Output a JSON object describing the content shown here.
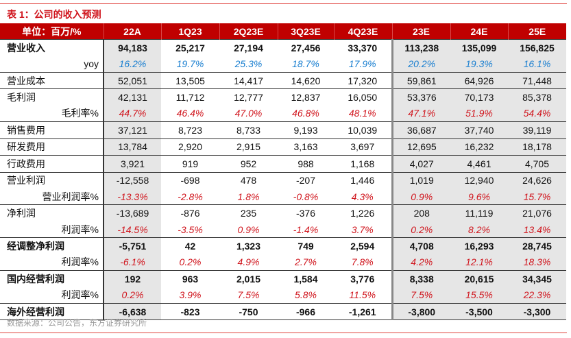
{
  "title": "表 1：公司的收入预测",
  "header": [
    "单位：百万/%",
    "22A",
    "1Q23",
    "2Q23E",
    "3Q23E",
    "4Q23E",
    "23E",
    "24E",
    "25E"
  ],
  "rows": [
    {
      "label": "营业收入",
      "style": "bold",
      "group": true,
      "values": [
        "94,183",
        "25,217",
        "27,194",
        "27,456",
        "33,370",
        "113,238",
        "135,099",
        "156,825"
      ]
    },
    {
      "label": "yoy",
      "style": "blue",
      "sub": true,
      "values": [
        "16.2%",
        "19.7%",
        "25.3%",
        "18.7%",
        "17.9%",
        "20.2%",
        "19.3%",
        "16.1%"
      ]
    },
    {
      "label": "营业成本",
      "group": true,
      "values": [
        "52,051",
        "13,505",
        "14,417",
        "14,620",
        "17,320",
        "59,861",
        "64,926",
        "71,448"
      ]
    },
    {
      "label": "毛利润",
      "group": true,
      "values": [
        "42,131",
        "11,712",
        "12,777",
        "12,837",
        "16,050",
        "53,376",
        "70,173",
        "85,378"
      ]
    },
    {
      "label": "毛利率%",
      "style": "red",
      "sub": true,
      "values": [
        "44.7%",
        "46.4%",
        "47.0%",
        "46.8%",
        "48.1%",
        "47.1%",
        "51.9%",
        "54.4%"
      ]
    },
    {
      "label": "销售费用",
      "group": true,
      "values": [
        "37,121",
        "8,723",
        "8,733",
        "9,193",
        "10,039",
        "36,687",
        "37,740",
        "39,119"
      ]
    },
    {
      "label": "研发费用",
      "group": true,
      "values": [
        "13,784",
        "2,920",
        "2,915",
        "3,163",
        "3,697",
        "12,695",
        "16,232",
        "18,178"
      ]
    },
    {
      "label": "行政费用",
      "group": true,
      "values": [
        "3,921",
        "919",
        "952",
        "988",
        "1,168",
        "4,027",
        "4,461",
        "4,705"
      ]
    },
    {
      "label": "营业利润",
      "group": true,
      "values": [
        "-12,558",
        "-698",
        "478",
        "-207",
        "1,446",
        "1,019",
        "12,940",
        "24,626"
      ]
    },
    {
      "label": "营业利润率%",
      "style": "red",
      "sub": true,
      "values": [
        "-13.3%",
        "-2.8%",
        "1.8%",
        "-0.8%",
        "4.3%",
        "0.9%",
        "9.6%",
        "15.7%"
      ]
    },
    {
      "label": "净利润",
      "group": true,
      "values": [
        "-13,689",
        "-876",
        "235",
        "-376",
        "1,226",
        "208",
        "11,119",
        "21,076"
      ]
    },
    {
      "label": "利润率%",
      "style": "red",
      "sub": true,
      "values": [
        "-14.5%",
        "-3.5%",
        "0.9%",
        "-1.4%",
        "3.7%",
        "0.2%",
        "8.2%",
        "13.4%"
      ]
    },
    {
      "label": "经调整净利润",
      "style": "bold",
      "group": true,
      "values": [
        "-5,751",
        "42",
        "1,323",
        "749",
        "2,594",
        "4,708",
        "16,293",
        "28,745"
      ]
    },
    {
      "label": "利润率%",
      "style": "red",
      "sub": true,
      "values": [
        "-6.1%",
        "0.2%",
        "4.9%",
        "2.7%",
        "7.8%",
        "4.2%",
        "12.1%",
        "18.3%"
      ]
    },
    {
      "label": "国内经营利润",
      "style": "bold",
      "group": true,
      "values": [
        "192",
        "963",
        "2,015",
        "1,584",
        "3,776",
        "8,338",
        "20,615",
        "34,345"
      ]
    },
    {
      "label": "利润率%",
      "style": "red",
      "sub": true,
      "values": [
        "0.2%",
        "3.9%",
        "7.5%",
        "5.8%",
        "11.5%",
        "7.5%",
        "15.5%",
        "22.3%"
      ]
    },
    {
      "label": "海外经营利润",
      "style": "bold",
      "group": true,
      "last": true,
      "values": [
        "-6,638",
        "-823",
        "-750",
        "-966",
        "-1,261",
        "-3,800",
        "-3,500",
        "-3,300"
      ]
    }
  ],
  "footer": "数据来源：公司公告，东方证券研究所"
}
